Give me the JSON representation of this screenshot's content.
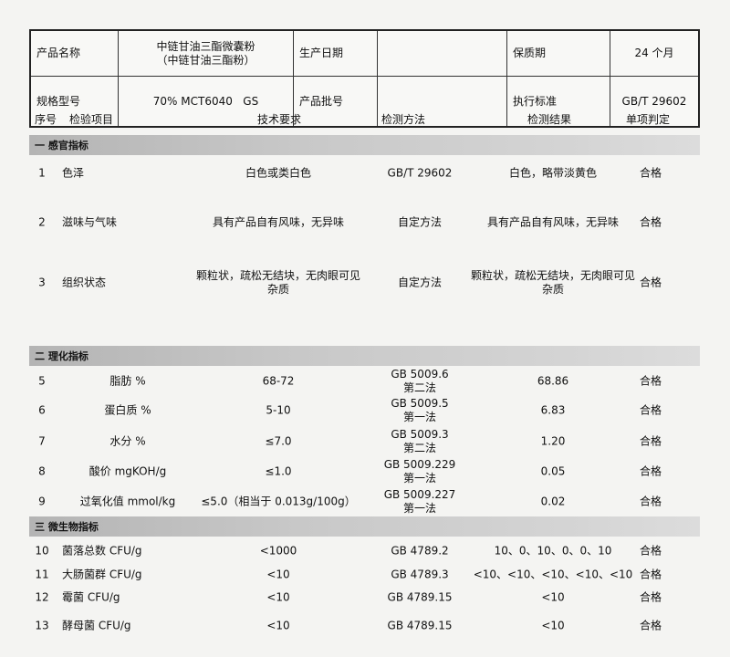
{
  "header": {
    "product_name_label": "产品名称",
    "product_name_line1": "中链甘油三酯微囊粉",
    "product_name_line2": "（中链甘油三酯粉）",
    "production_date_label": "生产日期",
    "production_date_value": "",
    "shelf_life_label": "保质期",
    "shelf_life_value": "24 个月",
    "spec_label": "规格型号",
    "spec_value": "70% MCT6040   GS",
    "batch_label": "产品批号",
    "batch_value": "",
    "standard_label": "执行标准",
    "standard_value": "GB/T 29602"
  },
  "columns": [
    "序号",
    "检验项目",
    "技术要求",
    "检测方法",
    "检测结果",
    "单项判定"
  ],
  "sections": [
    {
      "title": "一 感官指标",
      "rows": [
        {
          "no": "1",
          "item": "色泽",
          "requirement": "白色或类白色",
          "method": "GB/T 29602",
          "result": "白色，略带淡黄色",
          "verdict": "合格"
        },
        {
          "no": "2",
          "item": "滋味与气味",
          "requirement": "具有产品自有风味，无异味",
          "method": "自定方法",
          "result": "具有产品自有风味，无异味",
          "verdict": "合格"
        },
        {
          "no": "3",
          "item": "组织状态",
          "requirement": "颗粒状，疏松无结块，无肉眼可见\n杂质",
          "method": "自定方法",
          "result": "颗粒状，疏松无结块，无肉眼可见\n杂质",
          "verdict": "合格"
        }
      ]
    },
    {
      "title": "二 理化指标",
      "rows": [
        {
          "no": "5",
          "item": "脂肪 %",
          "requirement": "68-72",
          "method": "GB 5009.6\n第二法",
          "result": "68.86",
          "verdict": "合格"
        },
        {
          "no": "6",
          "item": "蛋白质 %",
          "requirement": "5-10",
          "method": "GB 5009.5\n第一法",
          "result": "6.83",
          "verdict": "合格"
        },
        {
          "no": "7",
          "item": "水分 %",
          "requirement": "≤7.0",
          "method": "GB 5009.3\n第二法",
          "result": "1.20",
          "verdict": "合格"
        },
        {
          "no": "8",
          "item": "酸价 mgKOH/g",
          "requirement": "≤1.0",
          "method": "GB 5009.229\n第一法",
          "result": "0.05",
          "verdict": "合格"
        },
        {
          "no": "9",
          "item": "过氧化值 mmol/kg",
          "requirement": "≤5.0（相当于 0.013g/100g）",
          "method": "GB 5009.227\n第一法",
          "result": "0.02",
          "verdict": "合格"
        }
      ]
    },
    {
      "title": "三 微生物指标",
      "rows": [
        {
          "no": "10",
          "item": "菌落总数 CFU/g",
          "requirement": "<1000",
          "method": "GB 4789.2",
          "result": "10、0、10、0、0、10",
          "verdict": "合格"
        },
        {
          "no": "11",
          "item": "大肠菌群 CFU/g",
          "requirement": "<10",
          "method": "GB 4789.3",
          "result": "<10、<10、<10、<10、<10",
          "verdict": "合格"
        },
        {
          "no": "12",
          "item": "霉菌 CFU/g",
          "requirement": "<10",
          "method": "GB 4789.15",
          "result": "<10",
          "verdict": "合格"
        },
        {
          "no": "13",
          "item": "酵母菌 CFU/g",
          "requirement": "<10",
          "method": "GB 4789.15",
          "result": "<10",
          "verdict": "合格"
        }
      ]
    }
  ]
}
